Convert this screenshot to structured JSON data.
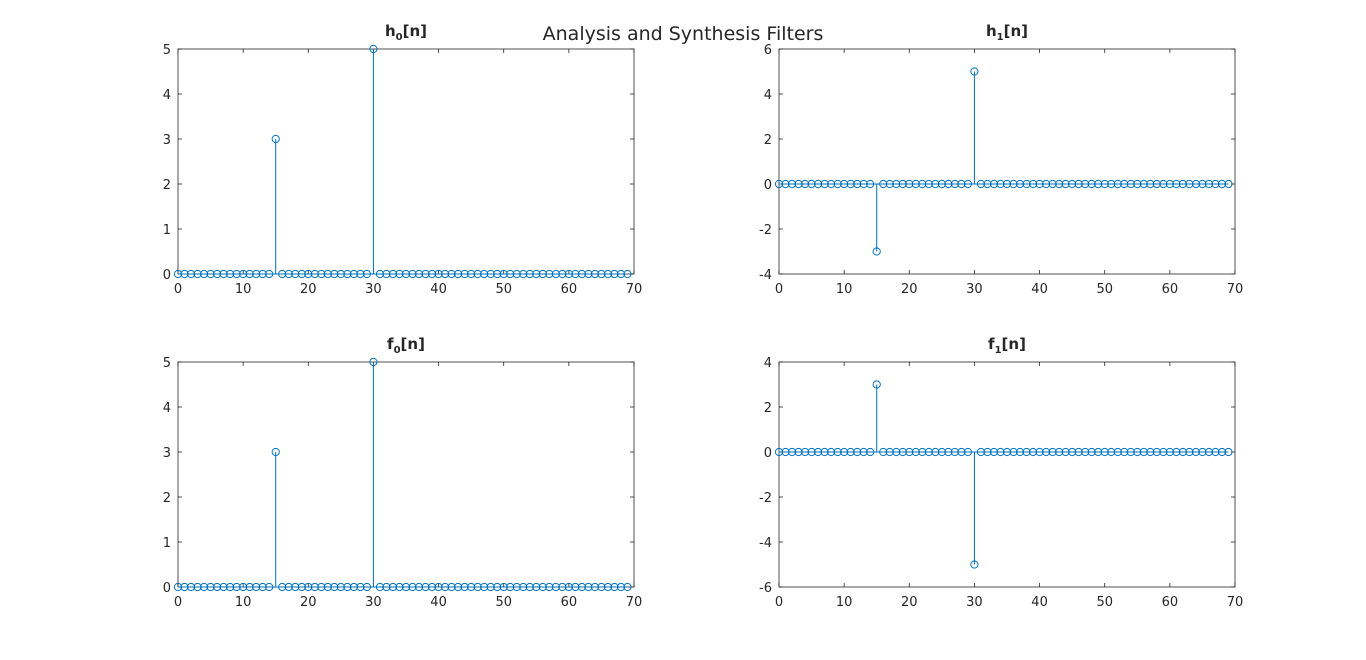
{
  "figure": {
    "title": "Analysis and Synthesis Filters"
  },
  "style": {
    "series_color": "#0072BD",
    "axis_color": "#262626"
  },
  "chart_data": [
    {
      "type": "stem",
      "title_main": "h",
      "title_sub": "0",
      "title_rest": "[n]",
      "xlim": [
        0,
        70
      ],
      "ylim": [
        0,
        5
      ],
      "x_ticks": [
        0,
        10,
        20,
        30,
        40,
        50,
        60,
        70
      ],
      "y_ticks": [
        0,
        1,
        2,
        3,
        4,
        5
      ],
      "x_tick_labels": [
        "0",
        "10",
        "20",
        "30",
        "40",
        "50",
        "60",
        "70"
      ],
      "y_tick_labels": [
        "0",
        "1",
        "2",
        "3",
        "4",
        "5"
      ],
      "n_samples": 70,
      "nonzero": [
        {
          "x": 15,
          "y": 3
        },
        {
          "x": 30,
          "y": 5
        }
      ]
    },
    {
      "type": "stem",
      "title_main": "h",
      "title_sub": "1",
      "title_rest": "[n]",
      "xlim": [
        0,
        70
      ],
      "ylim": [
        -4,
        6
      ],
      "x_ticks": [
        0,
        10,
        20,
        30,
        40,
        50,
        60,
        70
      ],
      "y_ticks": [
        -4,
        -2,
        0,
        2,
        4,
        6
      ],
      "x_tick_labels": [
        "0",
        "10",
        "20",
        "30",
        "40",
        "50",
        "60",
        "70"
      ],
      "y_tick_labels": [
        "-4",
        "-2",
        "0",
        "2",
        "4",
        "6"
      ],
      "n_samples": 70,
      "nonzero": [
        {
          "x": 15,
          "y": -3
        },
        {
          "x": 30,
          "y": 5
        }
      ]
    },
    {
      "type": "stem",
      "title_main": "f",
      "title_sub": "0",
      "title_rest": "[n]",
      "xlim": [
        0,
        70
      ],
      "ylim": [
        0,
        5
      ],
      "x_ticks": [
        0,
        10,
        20,
        30,
        40,
        50,
        60,
        70
      ],
      "y_ticks": [
        0,
        1,
        2,
        3,
        4,
        5
      ],
      "x_tick_labels": [
        "0",
        "10",
        "20",
        "30",
        "40",
        "50",
        "60",
        "70"
      ],
      "y_tick_labels": [
        "0",
        "1",
        "2",
        "3",
        "4",
        "5"
      ],
      "n_samples": 70,
      "nonzero": [
        {
          "x": 15,
          "y": 3
        },
        {
          "x": 30,
          "y": 5
        }
      ]
    },
    {
      "type": "stem",
      "title_main": "f",
      "title_sub": "1",
      "title_rest": "[n]",
      "xlim": [
        0,
        70
      ],
      "ylim": [
        -6,
        4
      ],
      "x_ticks": [
        0,
        10,
        20,
        30,
        40,
        50,
        60,
        70
      ],
      "y_ticks": [
        -6,
        -4,
        -2,
        0,
        2,
        4
      ],
      "x_tick_labels": [
        "0",
        "10",
        "20",
        "30",
        "40",
        "50",
        "60",
        "70"
      ],
      "y_tick_labels": [
        "-6",
        "-4",
        "-2",
        "0",
        "2",
        "4"
      ],
      "n_samples": 70,
      "nonzero": [
        {
          "x": 15,
          "y": 3
        },
        {
          "x": 30,
          "y": -5
        }
      ]
    }
  ]
}
